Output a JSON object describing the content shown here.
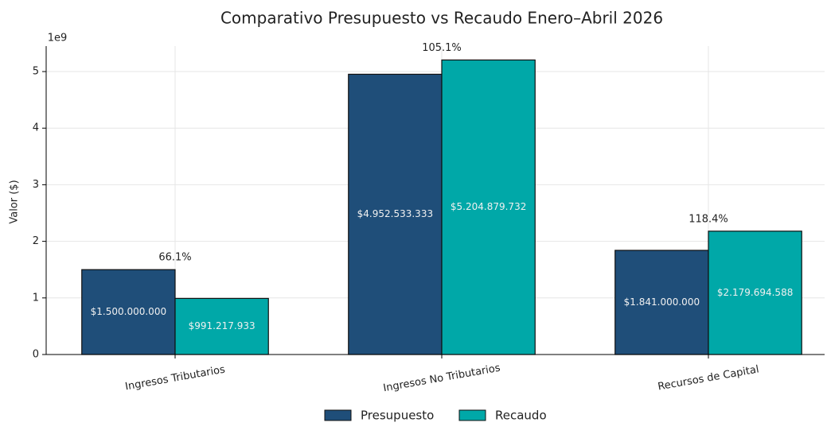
{
  "chart_data": {
    "type": "bar",
    "title": "Comparativo Presupuesto vs Recaudo Enero–Abril 2026",
    "ylabel": "Valor ($)",
    "axis_multiplier": "1e9",
    "categories": [
      "Ingresos Tributarios",
      "Ingresos No Tributarios",
      "Recursos de Capital"
    ],
    "series": [
      {
        "name": "Presupuesto",
        "color": "#1f4e79",
        "values": [
          1500000000,
          4952533333,
          1841000000
        ],
        "value_labels": [
          "$1.500.000.000",
          "$4.952.533.333",
          "$1.841.000.000"
        ]
      },
      {
        "name": "Recaudo",
        "color": "#00a8a8",
        "values": [
          991217933,
          5204879732,
          2179694588
        ],
        "value_labels": [
          "$991.217.933",
          "$5.204.879.732",
          "$2.179.694.588"
        ]
      }
    ],
    "ratio_labels": [
      "66.1%",
      "105.1%",
      "118.4%"
    ],
    "ylim": [
      0,
      5450000000
    ],
    "yticks": [
      {
        "value": 0,
        "label": "0"
      },
      {
        "value": 1000000000,
        "label": "1"
      },
      {
        "value": 2000000000,
        "label": "2"
      },
      {
        "value": 3000000000,
        "label": "3"
      },
      {
        "value": 4000000000,
        "label": "4"
      },
      {
        "value": 5000000000,
        "label": "5"
      }
    ],
    "grid": true,
    "legend": "bottom"
  }
}
